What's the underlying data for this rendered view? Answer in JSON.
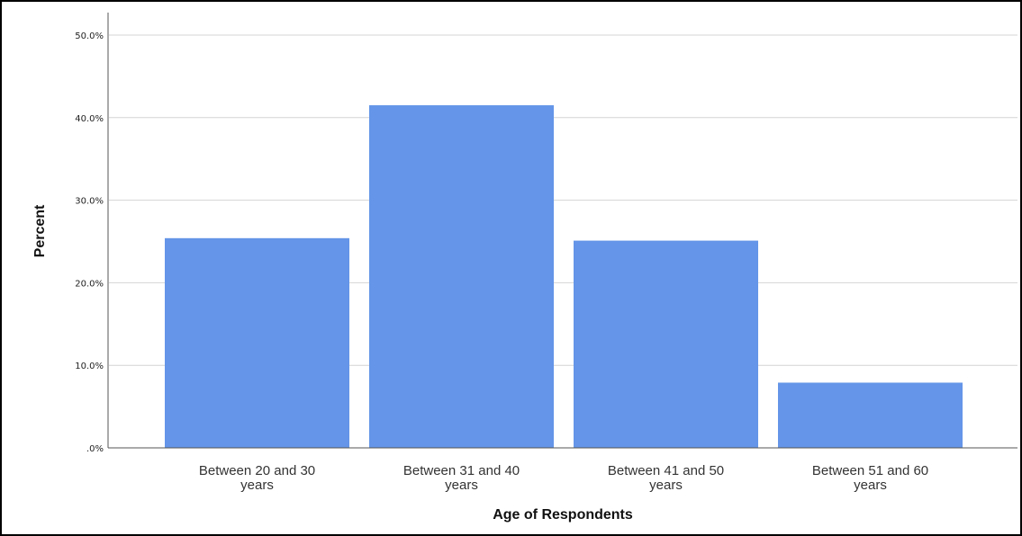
{
  "chart_data": {
    "type": "bar",
    "categories": [
      [
        "Between 20 and 30",
        "years"
      ],
      [
        "Between 31 and 40",
        "years"
      ],
      [
        "Between 41 and 50",
        "years"
      ],
      [
        "Between 51 and 60",
        "years"
      ]
    ],
    "values": [
      25.4,
      41.5,
      25.1,
      7.9
    ],
    "xlabel": "Age of Respondents",
    "ylabel": "Percent",
    "ylim": [
      0,
      50
    ],
    "yticks": [
      0,
      10,
      20,
      30,
      40,
      50
    ],
    "ytick_labels": [
      ".0%",
      "10.0%",
      "20.0%",
      "30.0%",
      "40.0%",
      "50.0%"
    ],
    "grid": true,
    "bar_color": "#6495e8",
    "grid_color": "#d4d4d4",
    "axis_color": "#aaaaaa"
  }
}
